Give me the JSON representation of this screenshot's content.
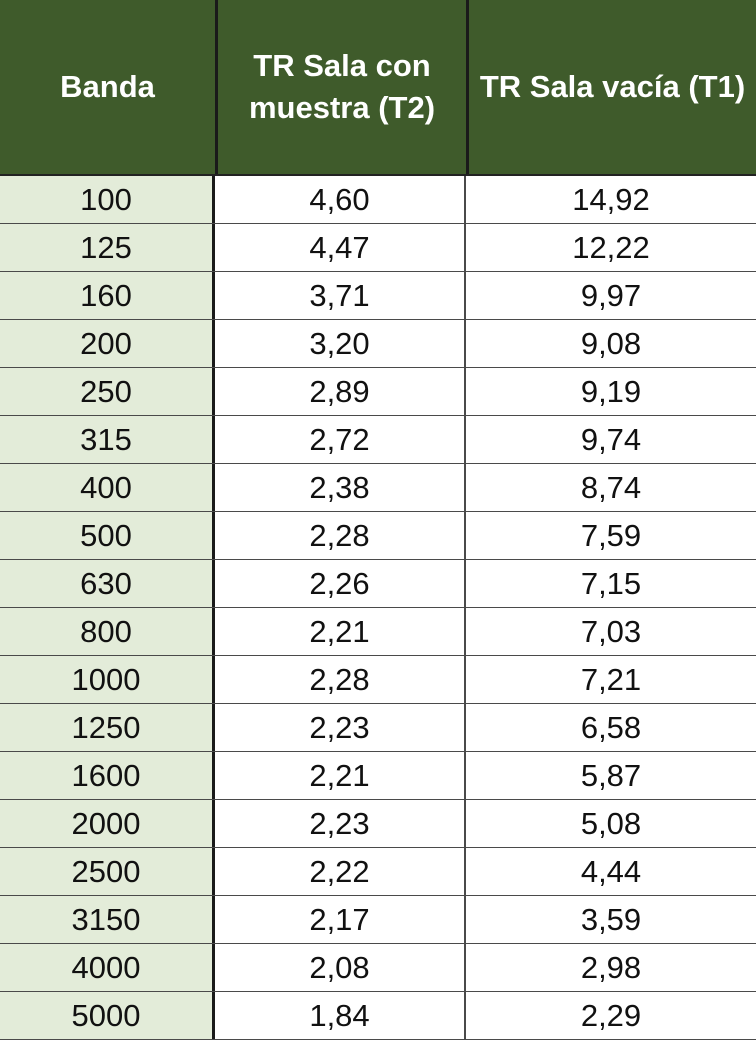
{
  "table": {
    "headers": [
      "Banda",
      "TR Sala con muestra (T2)",
      "TR Sala vacía (T1)"
    ],
    "rows": [
      [
        "100",
        "4,60",
        "14,92"
      ],
      [
        "125",
        "4,47",
        "12,22"
      ],
      [
        "160",
        "3,71",
        "9,97"
      ],
      [
        "200",
        "3,20",
        "9,08"
      ],
      [
        "250",
        "2,89",
        "9,19"
      ],
      [
        "315",
        "2,72",
        "9,74"
      ],
      [
        "400",
        "2,38",
        "8,74"
      ],
      [
        "500",
        "2,28",
        "7,59"
      ],
      [
        "630",
        "2,26",
        "7,15"
      ],
      [
        "800",
        "2,21",
        "7,03"
      ],
      [
        "1000",
        "2,28",
        "7,21"
      ],
      [
        "1250",
        "2,23",
        "6,58"
      ],
      [
        "1600",
        "2,21",
        "5,87"
      ],
      [
        "2000",
        "2,23",
        "5,08"
      ],
      [
        "2500",
        "2,22",
        "4,44"
      ],
      [
        "3150",
        "2,17",
        "3,59"
      ],
      [
        "4000",
        "2,08",
        "2,98"
      ],
      [
        "5000",
        "1,84",
        "2,29"
      ]
    ]
  },
  "colors": {
    "header_bg": "#3f5b2b",
    "header_text": "#ffffff",
    "first_col_bg": "#e3ecd9"
  }
}
